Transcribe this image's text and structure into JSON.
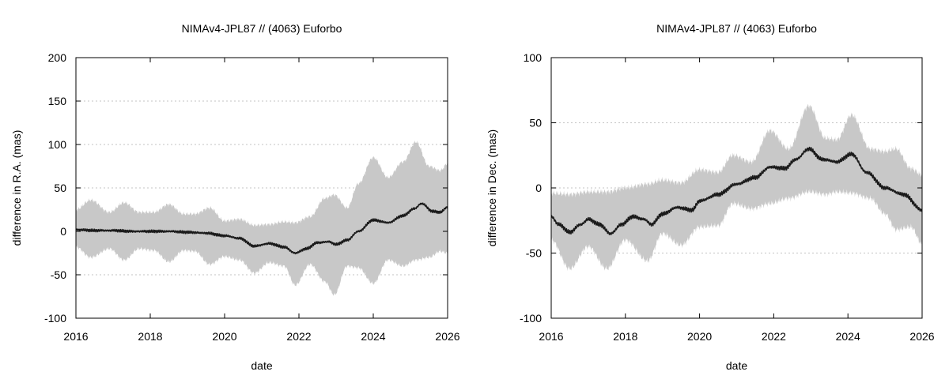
{
  "chart_data": [
    {
      "type": "area",
      "title": "NIMAv4-JPL87 // (4063) Euforbo",
      "xlabel": "date",
      "ylabel": "difference in R.A. (mas)",
      "xlim": [
        2016,
        2026
      ],
      "ylim": [
        -100,
        200
      ],
      "xticks": [
        2016,
        2018,
        2020,
        2022,
        2024,
        2026
      ],
      "yticks": [
        -100,
        -50,
        0,
        50,
        100,
        150,
        200
      ],
      "xtick_labels": [
        "2016",
        "2018",
        "2020",
        "2022",
        "2024",
        "2026"
      ],
      "ytick_labels": [
        "-100",
        "-50",
        "0",
        "50",
        "100",
        "150",
        "200"
      ],
      "grid": "horizontal dotted",
      "band_color": "#c8c8c8",
      "line_color": "#1a1a1a",
      "series": [
        {
          "role": "uncertainty-band",
          "x": [
            2016,
            2016.4,
            2016.9,
            2017.3,
            2017.7,
            2018.1,
            2018.5,
            2018.9,
            2019.2,
            2019.6,
            2020,
            2020.4,
            2020.8,
            2021.2,
            2021.6,
            2021.9,
            2022.3,
            2022.7,
            2022.95,
            2023.3,
            2023.6,
            2024,
            2024.4,
            2024.8,
            2025.15,
            2025.5,
            2025.8,
            2026
          ],
          "upper": [
            25,
            36,
            22,
            33,
            22,
            22,
            31,
            20,
            20,
            27,
            12,
            14,
            7,
            8,
            11,
            10,
            17,
            38,
            42,
            27,
            55,
            85,
            62,
            80,
            103,
            75,
            70,
            78
          ],
          "lower": [
            -18,
            -30,
            -20,
            -33,
            -20,
            -22,
            -35,
            -22,
            -23,
            -38,
            -29,
            -33,
            -48,
            -36,
            -40,
            -62,
            -38,
            -58,
            -73,
            -40,
            -42,
            -60,
            -33,
            -40,
            -33,
            -30,
            -23,
            -25
          ]
        },
        {
          "role": "difference",
          "x": [
            2016,
            2016.5,
            2017,
            2017.5,
            2018,
            2018.5,
            2019,
            2019.5,
            2020,
            2020.4,
            2020.8,
            2021.2,
            2021.6,
            2021.9,
            2022.2,
            2022.5,
            2022.8,
            2023,
            2023.3,
            2023.6,
            2024,
            2024.4,
            2024.8,
            2025.1,
            2025.3,
            2025.6,
            2025.8,
            2026
          ],
          "y": [
            2,
            1,
            1,
            0,
            0,
            0,
            -1,
            -2,
            -5,
            -8,
            -17,
            -14,
            -18,
            -25,
            -20,
            -13,
            -12,
            -15,
            -10,
            0,
            13,
            10,
            18,
            26,
            32,
            23,
            22,
            28
          ]
        }
      ]
    },
    {
      "type": "area",
      "title": "NIMAv4-JPL87 // (4063) Euforbo",
      "xlabel": "date",
      "ylabel": "difference in Dec. (mas)",
      "xlim": [
        2016,
        2026
      ],
      "ylim": [
        -100,
        100
      ],
      "xticks": [
        2016,
        2018,
        2020,
        2022,
        2024,
        2026
      ],
      "yticks": [
        -100,
        -50,
        0,
        50,
        100
      ],
      "xtick_labels": [
        "2016",
        "2018",
        "2020",
        "2022",
        "2024",
        "2026"
      ],
      "ytick_labels": [
        "-100",
        "-50",
        "0",
        "50",
        "100"
      ],
      "grid": "horizontal dotted",
      "band_color": "#c8c8c8",
      "line_color": "#1a1a1a",
      "series": [
        {
          "role": "uncertainty-band",
          "x": [
            2016,
            2016.5,
            2017,
            2017.5,
            2018,
            2018.6,
            2019,
            2019.5,
            2020,
            2020.5,
            2020.9,
            2021.4,
            2021.9,
            2022.4,
            2022.95,
            2023.4,
            2023.7,
            2024.1,
            2024.6,
            2025,
            2025.3,
            2025.7,
            2026
          ],
          "upper": [
            -4,
            -5,
            -3,
            -3,
            0,
            3,
            6,
            4,
            14,
            12,
            25,
            20,
            44,
            30,
            63,
            38,
            37,
            56,
            30,
            28,
            30,
            15,
            10
          ],
          "lower": [
            -40,
            -62,
            -45,
            -62,
            -40,
            -56,
            -35,
            -44,
            -30,
            -29,
            -12,
            -16,
            -12,
            -8,
            -3,
            -5,
            -3,
            -4,
            -8,
            -20,
            -32,
            -30,
            -43
          ]
        },
        {
          "role": "difference",
          "x": [
            2016,
            2016.2,
            2016.5,
            2016.8,
            2017,
            2017.3,
            2017.6,
            2017.9,
            2018.2,
            2018.5,
            2018.7,
            2019,
            2019.4,
            2019.8,
            2020,
            2020.5,
            2021,
            2021.5,
            2021.9,
            2022.3,
            2022.6,
            2022.95,
            2023.3,
            2023.7,
            2024.1,
            2024.5,
            2025,
            2025.5,
            2026
          ],
          "y": [
            -22,
            -28,
            -34,
            -28,
            -24,
            -28,
            -35,
            -28,
            -22,
            -24,
            -28,
            -20,
            -15,
            -17,
            -10,
            -5,
            3,
            8,
            16,
            15,
            22,
            30,
            22,
            20,
            26,
            12,
            0,
            -5,
            -17
          ]
        }
      ]
    }
  ]
}
